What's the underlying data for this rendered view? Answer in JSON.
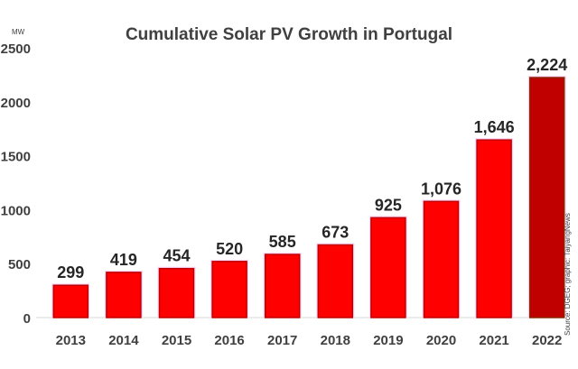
{
  "chart_data": {
    "type": "bar",
    "title": "Cumulative Solar PV Growth in Portugal",
    "ylabel": "MW",
    "categories": [
      "2013",
      "2014",
      "2015",
      "2016",
      "2017",
      "2018",
      "2019",
      "2020",
      "2021",
      "2022"
    ],
    "values": [
      299,
      419,
      454,
      520,
      585,
      673,
      925,
      1076,
      1646,
      2224
    ],
    "data_labels": [
      "299",
      "419",
      "454",
      "520",
      "585",
      "673",
      "925",
      "1,076",
      "1,646",
      "2,224"
    ],
    "ylim": [
      0,
      2500
    ],
    "yticks": [
      "0",
      "500",
      "1000",
      "1500",
      "2000",
      "2500"
    ],
    "grid": false,
    "legend": "none",
    "colors": {
      "bar": "#ff0000",
      "bar_edge": "#c00000",
      "highlight_bar": "#c00000",
      "highlight_edge": "#8b2500",
      "text": "#404040"
    },
    "source": "Source: DGEG; graphic: TaiyangNews"
  }
}
